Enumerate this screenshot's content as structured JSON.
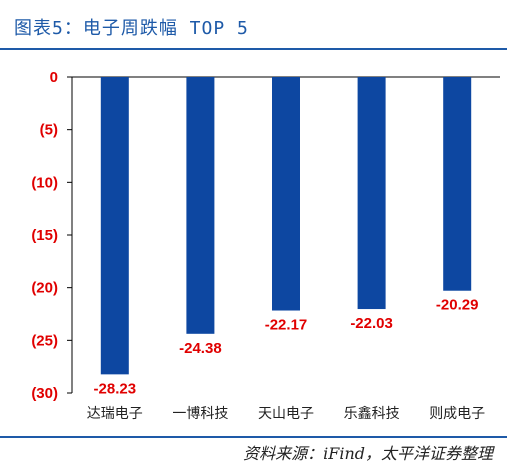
{
  "header": {
    "title": "图表5：电子周跌幅 TOP 5"
  },
  "footer": {
    "source": "资料来源：iFind，太平洋证券整理"
  },
  "colors": {
    "bar": "#0d47a1",
    "tick": "#e00000",
    "value_label": "#e00000",
    "title": "#1e5aa8",
    "axis": "#000000"
  },
  "chart_data": {
    "type": "bar",
    "title": "图表5：电子周跌幅 TOP 5",
    "xlabel": "",
    "ylabel": "",
    "categories": [
      "达瑞电子",
      "一博科技",
      "天山电子",
      "乐鑫科技",
      "则成电子"
    ],
    "values": [
      -28.23,
      -24.38,
      -22.17,
      -22.03,
      -20.29
    ],
    "value_labels": [
      "-28.23",
      "-24.38",
      "-22.17",
      "-22.03",
      "-20.29"
    ],
    "ylim": [
      -30,
      0
    ],
    "yticks": [
      0,
      -5,
      -10,
      -15,
      -20,
      -25,
      -30
    ],
    "ytick_labels": [
      "0",
      "(5)",
      "(10)",
      "(15)",
      "(20)",
      "(25)",
      "(30)"
    ],
    "grid": false,
    "legend": "none"
  }
}
